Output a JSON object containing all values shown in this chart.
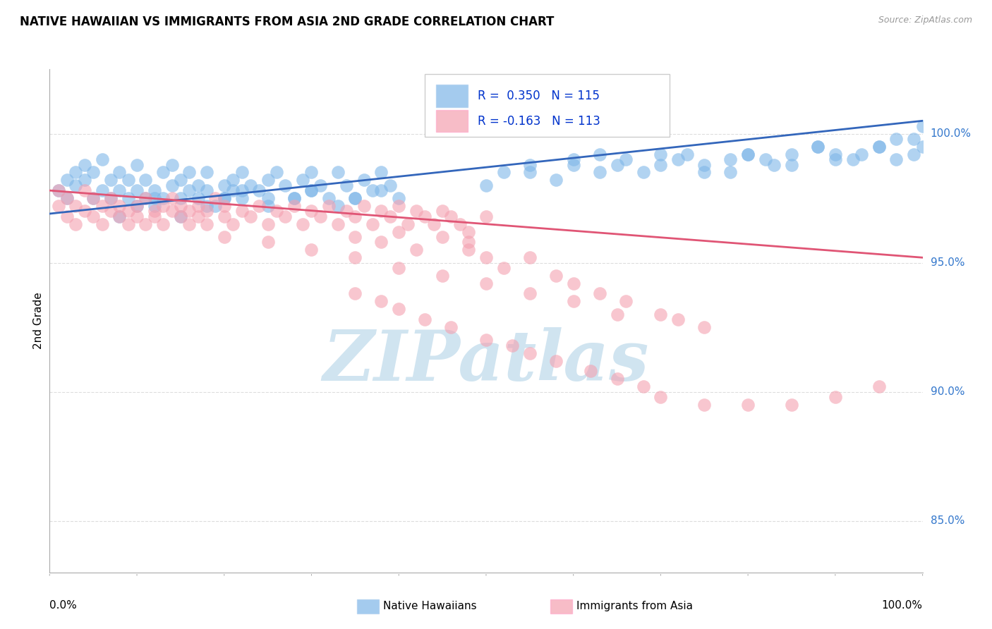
{
  "title": "NATIVE HAWAIIAN VS IMMIGRANTS FROM ASIA 2ND GRADE CORRELATION CHART",
  "source": "Source: ZipAtlas.com",
  "ylabel": "2nd Grade",
  "ytick_labels": [
    "100.0%",
    "95.0%",
    "90.0%",
    "85.0%"
  ],
  "ytick_values": [
    1.0,
    0.95,
    0.9,
    0.85
  ],
  "xlim": [
    0.0,
    1.0
  ],
  "ylim": [
    0.83,
    1.025
  ],
  "blue_R": 0.35,
  "blue_N": 115,
  "pink_R": -0.163,
  "pink_N": 113,
  "blue_color": "#7EB6E8",
  "pink_color": "#F4A0B0",
  "blue_line_color": "#3366BB",
  "pink_line_color": "#E05575",
  "legend_R_color": "#0033CC",
  "watermark": "ZIPatlas",
  "watermark_color": "#D0E4F0",
  "background_color": "#FFFFFF",
  "grid_color": "#DDDDDD",
  "title_fontsize": 12,
  "source_fontsize": 9,
  "legend_fontsize": 12,
  "blue_line_start_x": 0.0,
  "blue_line_start_y": 0.969,
  "blue_line_end_x": 1.0,
  "blue_line_end_y": 1.005,
  "pink_line_start_x": 0.0,
  "pink_line_start_y": 0.978,
  "pink_line_end_x": 1.0,
  "pink_line_end_y": 0.952,
  "blue_points_x": [
    0.01,
    0.02,
    0.02,
    0.03,
    0.03,
    0.04,
    0.04,
    0.05,
    0.05,
    0.06,
    0.06,
    0.07,
    0.07,
    0.08,
    0.08,
    0.09,
    0.09,
    0.1,
    0.1,
    0.11,
    0.11,
    0.12,
    0.12,
    0.13,
    0.13,
    0.14,
    0.14,
    0.15,
    0.15,
    0.16,
    0.16,
    0.17,
    0.17,
    0.18,
    0.18,
    0.19,
    0.2,
    0.2,
    0.21,
    0.21,
    0.22,
    0.22,
    0.23,
    0.24,
    0.25,
    0.25,
    0.26,
    0.27,
    0.28,
    0.29,
    0.3,
    0.3,
    0.31,
    0.32,
    0.33,
    0.34,
    0.35,
    0.36,
    0.37,
    0.38,
    0.39,
    0.4,
    0.55,
    0.6,
    0.63,
    0.65,
    0.68,
    0.7,
    0.72,
    0.75,
    0.78,
    0.8,
    0.82,
    0.85,
    0.88,
    0.9,
    0.92,
    0.95,
    0.97,
    0.99,
    1.0,
    0.5,
    0.52,
    0.55,
    0.58,
    0.6,
    0.63,
    0.66,
    0.7,
    0.73,
    0.75,
    0.78,
    0.8,
    0.83,
    0.85,
    0.88,
    0.9,
    0.93,
    0.95,
    0.97,
    0.99,
    1.0,
    0.08,
    0.1,
    0.12,
    0.15,
    0.18,
    0.2,
    0.22,
    0.25,
    0.28,
    0.3,
    0.33,
    0.35,
    0.38
  ],
  "blue_points_y": [
    0.978,
    0.982,
    0.975,
    0.98,
    0.985,
    0.982,
    0.988,
    0.975,
    0.985,
    0.978,
    0.99,
    0.982,
    0.975,
    0.985,
    0.978,
    0.975,
    0.982,
    0.978,
    0.988,
    0.975,
    0.982,
    0.978,
    0.972,
    0.985,
    0.975,
    0.98,
    0.988,
    0.975,
    0.982,
    0.978,
    0.985,
    0.975,
    0.98,
    0.985,
    0.978,
    0.972,
    0.98,
    0.975,
    0.982,
    0.978,
    0.975,
    0.985,
    0.98,
    0.978,
    0.982,
    0.975,
    0.985,
    0.98,
    0.975,
    0.982,
    0.978,
    0.985,
    0.98,
    0.975,
    0.985,
    0.98,
    0.975,
    0.982,
    0.978,
    0.985,
    0.98,
    0.975,
    0.985,
    0.99,
    0.992,
    0.988,
    0.985,
    0.992,
    0.99,
    0.988,
    0.985,
    0.992,
    0.99,
    0.988,
    0.995,
    0.992,
    0.99,
    0.995,
    0.998,
    0.998,
    1.003,
    0.98,
    0.985,
    0.988,
    0.982,
    0.988,
    0.985,
    0.99,
    0.988,
    0.992,
    0.985,
    0.99,
    0.992,
    0.988,
    0.992,
    0.995,
    0.99,
    0.992,
    0.995,
    0.99,
    0.992,
    0.995,
    0.968,
    0.972,
    0.975,
    0.968,
    0.972,
    0.975,
    0.978,
    0.972,
    0.975,
    0.978,
    0.972,
    0.975,
    0.978
  ],
  "pink_points_x": [
    0.01,
    0.01,
    0.02,
    0.02,
    0.03,
    0.03,
    0.04,
    0.04,
    0.05,
    0.05,
    0.06,
    0.06,
    0.07,
    0.07,
    0.08,
    0.08,
    0.09,
    0.09,
    0.1,
    0.1,
    0.11,
    0.11,
    0.12,
    0.12,
    0.13,
    0.13,
    0.14,
    0.14,
    0.15,
    0.15,
    0.16,
    0.16,
    0.17,
    0.17,
    0.18,
    0.18,
    0.19,
    0.2,
    0.2,
    0.21,
    0.22,
    0.23,
    0.24,
    0.25,
    0.26,
    0.27,
    0.28,
    0.29,
    0.3,
    0.31,
    0.32,
    0.33,
    0.34,
    0.35,
    0.36,
    0.37,
    0.38,
    0.39,
    0.4,
    0.41,
    0.42,
    0.43,
    0.44,
    0.45,
    0.46,
    0.47,
    0.48,
    0.5,
    0.35,
    0.38,
    0.4,
    0.42,
    0.45,
    0.48,
    0.48,
    0.5,
    0.52,
    0.55,
    0.58,
    0.6,
    0.63,
    0.66,
    0.7,
    0.72,
    0.75,
    0.35,
    0.38,
    0.4,
    0.43,
    0.46,
    0.5,
    0.53,
    0.55,
    0.58,
    0.62,
    0.65,
    0.68,
    0.7,
    0.75,
    0.8,
    0.85,
    0.9,
    0.95,
    0.2,
    0.25,
    0.3,
    0.35,
    0.4,
    0.45,
    0.5,
    0.55,
    0.6,
    0.65
  ],
  "pink_points_y": [
    0.978,
    0.972,
    0.975,
    0.968,
    0.972,
    0.965,
    0.97,
    0.978,
    0.968,
    0.975,
    0.972,
    0.965,
    0.97,
    0.975,
    0.968,
    0.972,
    0.965,
    0.97,
    0.972,
    0.968,
    0.975,
    0.965,
    0.97,
    0.968,
    0.972,
    0.965,
    0.97,
    0.975,
    0.968,
    0.972,
    0.965,
    0.97,
    0.968,
    0.972,
    0.965,
    0.97,
    0.975,
    0.968,
    0.972,
    0.965,
    0.97,
    0.968,
    0.972,
    0.965,
    0.97,
    0.968,
    0.972,
    0.965,
    0.97,
    0.968,
    0.972,
    0.965,
    0.97,
    0.968,
    0.972,
    0.965,
    0.97,
    0.968,
    0.972,
    0.965,
    0.97,
    0.968,
    0.965,
    0.97,
    0.968,
    0.965,
    0.962,
    0.968,
    0.96,
    0.958,
    0.962,
    0.955,
    0.96,
    0.955,
    0.958,
    0.952,
    0.948,
    0.952,
    0.945,
    0.942,
    0.938,
    0.935,
    0.93,
    0.928,
    0.925,
    0.938,
    0.935,
    0.932,
    0.928,
    0.925,
    0.92,
    0.918,
    0.915,
    0.912,
    0.908,
    0.905,
    0.902,
    0.898,
    0.895,
    0.895,
    0.895,
    0.898,
    0.902,
    0.96,
    0.958,
    0.955,
    0.952,
    0.948,
    0.945,
    0.942,
    0.938,
    0.935,
    0.93
  ]
}
